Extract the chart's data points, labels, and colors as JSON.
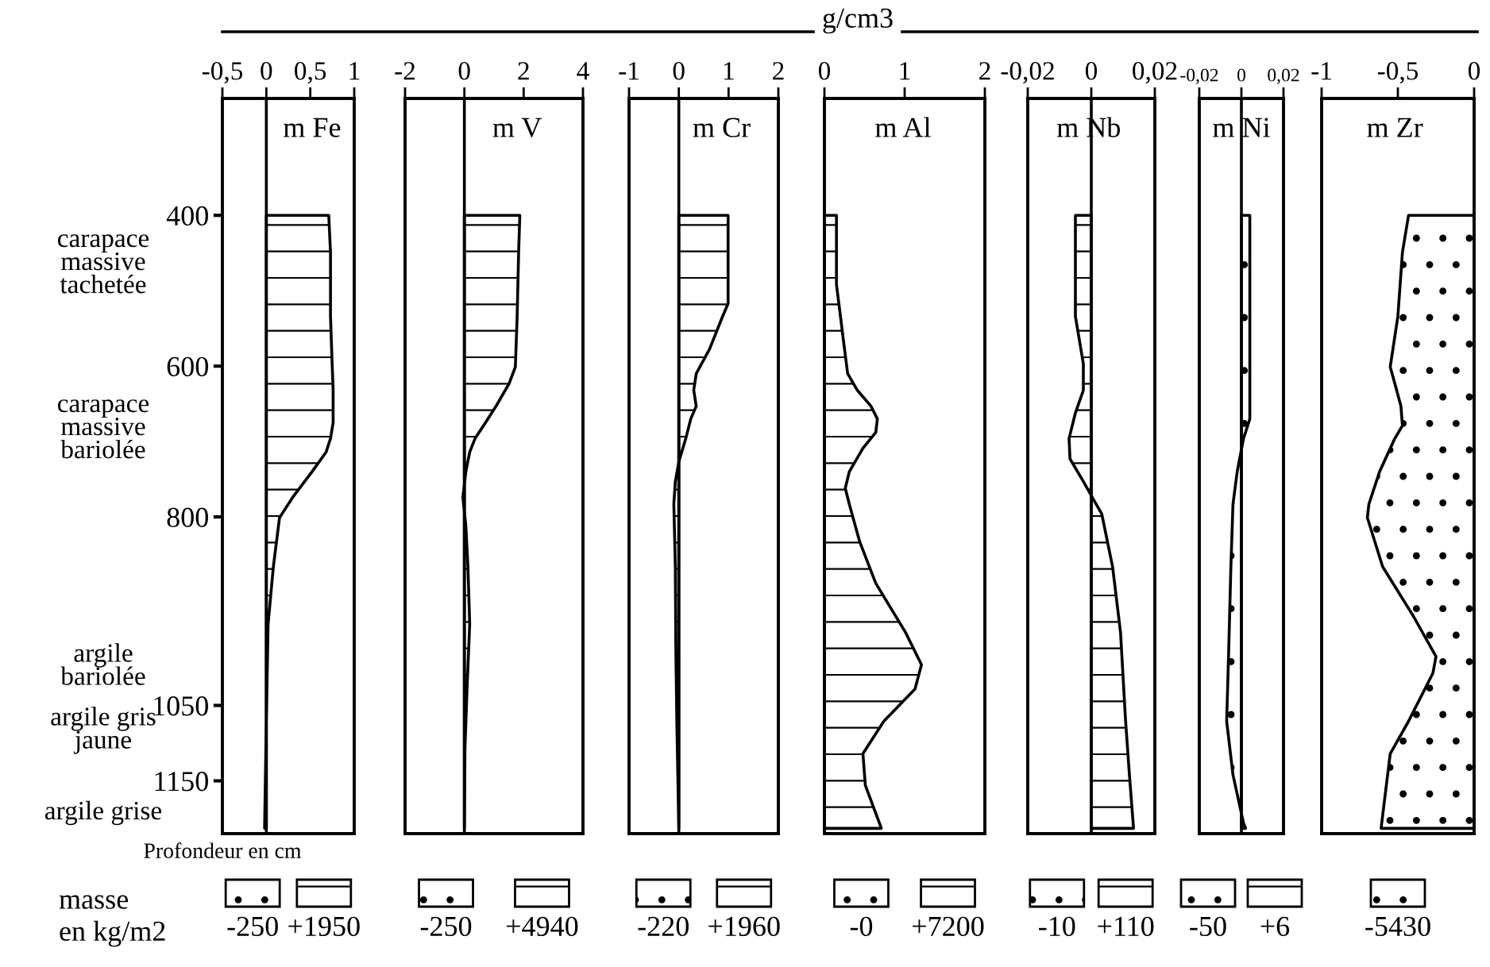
{
  "chart_data": [
    {
      "type": "area",
      "orientation": "horizontal",
      "title": "m Fe",
      "ylabel": "Profondeur en cm",
      "legend_title": "masse\nen kg/m2",
      "xlim": [
        -0.5,
        1
      ],
      "xticks": [
        {
          "value": -0.5,
          "label": "-0,5"
        },
        0,
        {
          "value": 0.5,
          "label": "0,5"
        },
        1
      ],
      "ylim": [
        1220,
        245
      ],
      "yticks": [
        400,
        600,
        800,
        1050,
        1150
      ],
      "ref_lines": [
        {
          "axis": "x",
          "value": 0
        }
      ],
      "series": [
        {
          "color": "#000000",
          "x": [
            400,
            449,
            534,
            601,
            632,
            675,
            696,
            714,
            740,
            774,
            801,
            866,
            942,
            1071,
            1213
          ],
          "values": [
            0.71,
            0.73,
            0.73,
            0.75,
            0.76,
            0.76,
            0.73,
            0.68,
            0.52,
            0.3,
            0.15,
            0.08,
            0.02,
            0,
            -0.02
          ]
        }
      ],
      "annotations": [
        "carapace\nmassive\ntachetée",
        "carapace\nmassive\nbariolée",
        "argile\nbariolée",
        "argile gris\njaune",
        "argile grise",
        "-250",
        "+1950"
      ]
    },
    {
      "type": "area",
      "orientation": "horizontal",
      "title": "m V",
      "tick_labels": "x",
      "xlim": [
        -2,
        4
      ],
      "xticks": [
        -2,
        0,
        2,
        4
      ],
      "ylim": [
        1220,
        245
      ],
      "ref_lines": [
        {
          "axis": "x",
          "value": 0
        }
      ],
      "series": [
        {
          "color": "#000000",
          "x": [
            400,
            449,
            534,
            601,
            623,
            653,
            675,
            696,
            714,
            740,
            774,
            812,
            866,
            942,
            1028,
            1107,
            1213
          ],
          "values": [
            1.87,
            1.83,
            1.78,
            1.72,
            1.51,
            1.07,
            0.71,
            0.36,
            0.18,
            0.05,
            -0.05,
            0.05,
            0.12,
            0.18,
            0.09,
            0.02,
            0
          ]
        }
      ],
      "annotations": [
        "-250",
        "+4940"
      ]
    },
    {
      "type": "area",
      "orientation": "horizontal",
      "title": "m Cr",
      "tick_labels": "x",
      "xlim": [
        -1,
        2
      ],
      "xticks": [
        -1,
        0,
        1,
        2
      ],
      "ylim": [
        1220,
        245
      ],
      "ref_lines": [
        {
          "axis": "x",
          "value": 0
        }
      ],
      "series": [
        {
          "color": "#000000",
          "x": [
            400,
            449,
            492,
            517,
            534,
            577,
            610,
            632,
            653,
            670,
            696,
            727,
            753,
            783,
            866,
            974,
            1071,
            1142,
            1213
          ],
          "values": [
            0.99,
            0.99,
            0.99,
            0.99,
            0.88,
            0.62,
            0.35,
            0.3,
            0.35,
            0.24,
            0.14,
            0,
            -0.07,
            -0.1,
            -0.07,
            -0.06,
            -0.04,
            -0.02,
            0
          ]
        }
      ],
      "annotations": [
        "-220",
        "+1960"
      ]
    },
    {
      "type": "area",
      "orientation": "horizontal",
      "title": "m Al",
      "tick_labels": "x",
      "xlim": [
        0,
        2
      ],
      "xticks": [
        0,
        1,
        2
      ],
      "ylim": [
        1220,
        245
      ],
      "series": [
        {
          "color": "#000000",
          "x": [
            400,
            492,
            534,
            577,
            610,
            632,
            653,
            670,
            688,
            709,
            740,
            762,
            783,
            833,
            888,
            953,
            996,
            1028,
            1071,
            1114,
            1156,
            1213
          ],
          "values": [
            0.15,
            0.15,
            0.2,
            0.25,
            0.29,
            0.41,
            0.58,
            0.66,
            0.64,
            0.48,
            0.31,
            0.26,
            0.31,
            0.44,
            0.64,
            1.01,
            1.21,
            1.13,
            0.74,
            0.48,
            0.51,
            0.71
          ]
        }
      ],
      "annotations": [
        "g/cm3",
        "-0",
        "+7200"
      ]
    },
    {
      "type": "area",
      "orientation": "horizontal",
      "title": "m Nb",
      "tick_labels": "x",
      "xlim": [
        -0.02,
        0.02
      ],
      "xticks": [
        {
          "value": -0.02,
          "label": "-0,02"
        },
        0,
        {
          "value": 0.02,
          "label": "0,02"
        }
      ],
      "ylim": [
        1220,
        245
      ],
      "ref_lines": [
        {
          "axis": "x",
          "value": 0
        }
      ],
      "series": [
        {
          "color": "#000000",
          "x": [
            400,
            534,
            597,
            632,
            662,
            696,
            723,
            753,
            774,
            796,
            866,
            953,
            1071,
            1142,
            1213
          ],
          "values": [
            -0.005,
            -0.005,
            -0.0025,
            -0.0025,
            -0.005,
            -0.007,
            -0.0067,
            -0.0025,
            0.0003,
            0.0033,
            0.0067,
            0.0092,
            0.0108,
            0.012,
            0.0133
          ]
        }
      ],
      "annotations": [
        "-10",
        "+110"
      ]
    },
    {
      "type": "area",
      "orientation": "horizontal",
      "title": "m Ni",
      "tick_labels": "x",
      "xlim": [
        -0.02,
        0.02
      ],
      "xticks": [
        {
          "value": -0.02,
          "label": "-0,02"
        },
        0,
        {
          "value": 0.02,
          "label": "0,02"
        }
      ],
      "ylim": [
        1220,
        245
      ],
      "ref_lines": [
        {
          "axis": "x",
          "value": 0
        }
      ],
      "series": [
        {
          "color": "#000000",
          "x": [
            400,
            534,
            632,
            670,
            696,
            740,
            783,
            866,
            974,
            1071,
            1142,
            1206,
            1213
          ],
          "values": [
            0.004,
            0.004,
            0.004,
            0.004,
            0.001,
            -0.002,
            -0.004,
            -0.005,
            -0.006,
            -0.007,
            -0.004,
            0.001,
            0.002
          ]
        }
      ],
      "annotations": [
        "-50",
        "+6"
      ]
    },
    {
      "type": "area",
      "orientation": "horizontal",
      "title": "m Zr",
      "tick_labels": "x",
      "xlim": [
        -1,
        0
      ],
      "xticks": [
        -1,
        {
          "value": -0.5,
          "label": "-0,5"
        },
        0
      ],
      "ylim": [
        1220,
        245
      ],
      "series": [
        {
          "color": "#000000",
          "x": [
            400,
            449,
            534,
            601,
            623,
            653,
            679,
            696,
            740,
            783,
            801,
            866,
            931,
            985,
            1007,
            1071,
            1114,
            1163,
            1213
          ],
          "values": [
            -0.43,
            -0.47,
            -0.5,
            -0.55,
            -0.52,
            -0.48,
            -0.47,
            -0.52,
            -0.62,
            -0.69,
            -0.7,
            -0.6,
            -0.4,
            -0.25,
            -0.27,
            -0.43,
            -0.55,
            -0.58,
            -0.61
          ]
        }
      ],
      "annotations": [
        "-5430"
      ]
    }
  ]
}
